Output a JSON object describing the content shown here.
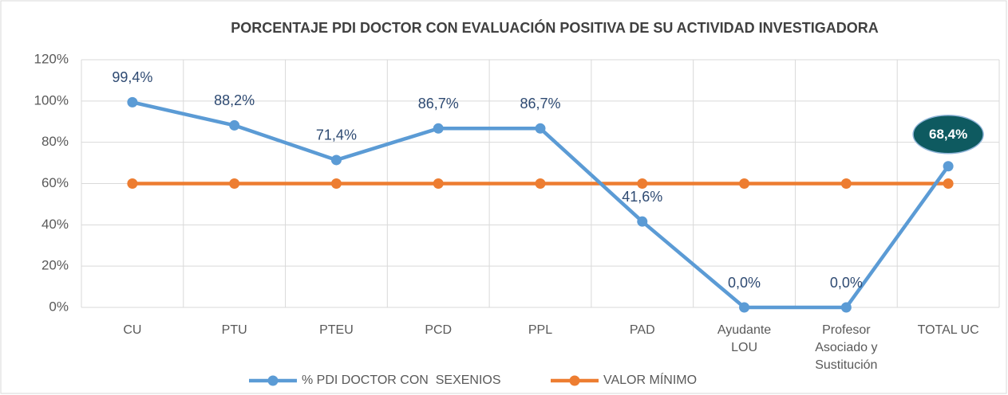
{
  "chart_data": {
    "type": "line",
    "title": "PORCENTAJE PDI DOCTOR CON EVALUACIÓN POSITIVA DE SU ACTIVIDAD INVESTIGADORA",
    "categories": [
      "CU",
      "PTU",
      "PTEU",
      "PCD",
      "PPL",
      "PAD",
      "Ayudante LOU",
      "Profesor Asociado y Sustitución",
      "TOTAL UC"
    ],
    "series": [
      {
        "name": "% PDI DOCTOR CON  SEXENIOS",
        "color": "#5b9bd5",
        "values": [
          99.4,
          88.2,
          71.4,
          86.7,
          86.7,
          41.6,
          0,
          0,
          68.4
        ],
        "value_labels": [
          "99,4%",
          "88,2%",
          "71,4%",
          "86,7%",
          "86,7%",
          "41,6%",
          "0,0%",
          "0,0%",
          "68,4%"
        ]
      },
      {
        "name": "VALOR MÍNIMO",
        "color": "#ed7d31",
        "values": [
          60,
          60,
          60,
          60,
          60,
          60,
          60,
          60,
          60
        ]
      }
    ],
    "ylim": [
      0,
      120
    ],
    "yticks": [
      {
        "value": 0,
        "label": "0%"
      },
      {
        "value": 20,
        "label": "20%"
      },
      {
        "value": 40,
        "label": "40%"
      },
      {
        "value": 60,
        "label": "60%"
      },
      {
        "value": 80,
        "label": "80%"
      },
      {
        "value": 100,
        "label": "100%"
      },
      {
        "value": 120,
        "label": "120%"
      }
    ],
    "grid": true,
    "legend": "bottom"
  }
}
